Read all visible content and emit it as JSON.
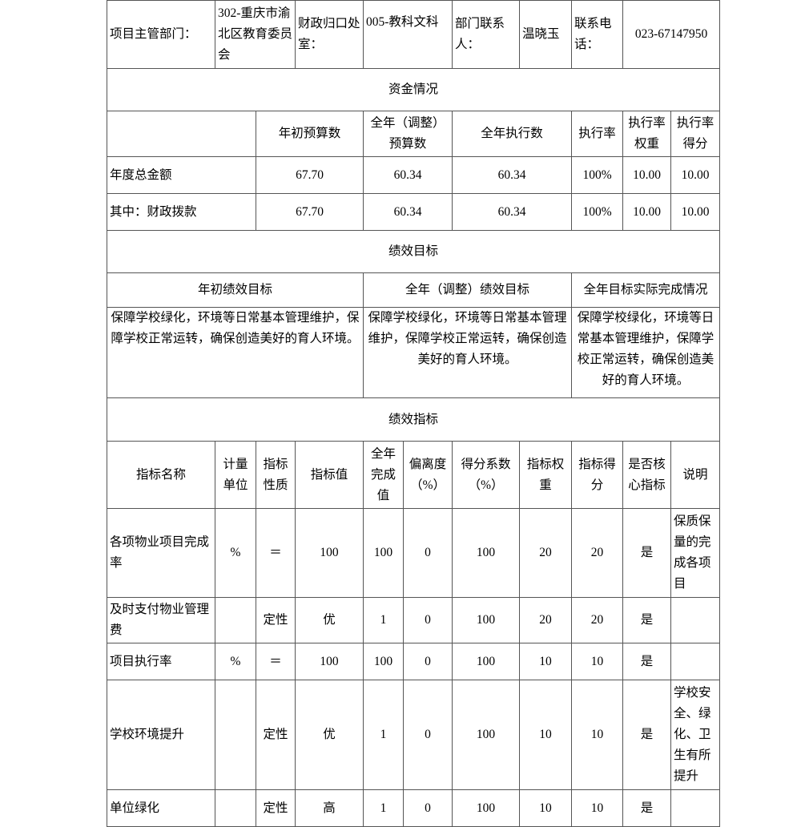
{
  "header": {
    "dept_label": "项目主管部门：",
    "dept_value": "302-重庆市渝北区教育委员会",
    "finance_label": "财政归口处室：",
    "finance_value": "005-教科文科",
    "contact_label": "部门联系人：",
    "contact_value": "温晓玉",
    "phone_label": "联系电话：",
    "phone_value": "023-67147950"
  },
  "funds": {
    "title": "资金情况",
    "columns": [
      "年初预算数",
      "全年（调整）预算数",
      "全年执行数",
      "执行率",
      "执行率权重",
      "执行率得分"
    ],
    "rows": [
      {
        "label": "年度总金额",
        "values": [
          "67.70",
          "60.34",
          "60.34",
          "100%",
          "10.00",
          "10.00"
        ]
      },
      {
        "label": "其中：财政拨款",
        "values": [
          "67.70",
          "60.34",
          "60.34",
          "100%",
          "10.00",
          "10.00"
        ]
      }
    ]
  },
  "goals": {
    "title": "绩效目标",
    "columns": [
      "年初绩效目标",
      "全年（调整）绩效目标",
      "全年目标实际完成情况"
    ],
    "values": [
      "保障学校绿化，环境等日常基本管理维护，保障学校正常运转，确保创造美好的育人环境。",
      "保障学校绿化，环境等日常基本管理维护，保障学校正常运转，确保创造美好的育人环境。",
      "保障学校绿化，环境等日常基本管理维护，保障学校正常运转，确保创造美好的育人环境。"
    ]
  },
  "indicators": {
    "title": "绩效指标",
    "columns": [
      "指标名称",
      "计量单位",
      "指标性质",
      "指标值",
      "全年完成值",
      "偏离度（%）",
      "得分系数（%）",
      "指标权重",
      "指标得分",
      "是否核心指标",
      "说明"
    ],
    "rows": [
      [
        "各项物业项目完成率",
        "%",
        "＝",
        "100",
        "100",
        "0",
        "100",
        "20",
        "20",
        "是",
        "保质保量的完成各项目"
      ],
      [
        "及时支付物业管理费",
        "",
        "定性",
        "优",
        "1",
        "0",
        "100",
        "20",
        "20",
        "是",
        ""
      ],
      [
        "项目执行率",
        "%",
        "＝",
        "100",
        "100",
        "0",
        "100",
        "10",
        "10",
        "是",
        ""
      ],
      [
        "学校环境提升",
        "",
        "定性",
        "优",
        "1",
        "0",
        "100",
        "10",
        "10",
        "是",
        "学校安全、绿化、卫生有所提升"
      ],
      [
        "单位绿化",
        "",
        "定性",
        "高",
        "1",
        "0",
        "100",
        "10",
        "10",
        "是",
        ""
      ]
    ]
  }
}
